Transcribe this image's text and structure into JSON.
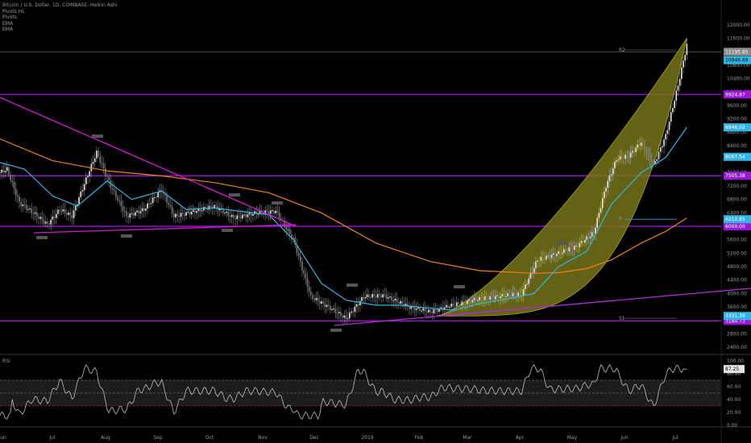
{
  "legend": {
    "symbol": "Bitcoin / U.S. Dollar, 1D, COINBASE, Heikin Ashi",
    "indicators": [
      "Pivots HL",
      "Pivots",
      "EMA",
      "EMA"
    ]
  },
  "rsi_panel": {
    "label": "RSI"
  },
  "colors": {
    "background": "#000000",
    "support_resistance": "#9b16d6",
    "trendline": "#d418d6",
    "ema_fast": "#2fb6e6",
    "ema_slow": "#f0820f",
    "parabola_fill": "#7d7a19",
    "candles": "#cfcfcf"
  },
  "chart_data": [
    {
      "type": "line",
      "title": "Bitcoin / U.S. Dollar, 1D, COINBASE, Heikin Ashi",
      "x_tick_labels": [
        "Jun",
        "Jul",
        "Aug",
        "Sep",
        "Oct",
        "Nov",
        "Dec",
        "2019",
        "Feb",
        "Mar",
        "Apr",
        "May",
        "Jun",
        "Jul"
      ],
      "y_tick_labels": [
        "12000.00",
        "11600.00",
        "11200.00",
        "10800.00",
        "10400.00",
        "10000.00",
        "9600.00",
        "9200.00",
        "8800.00",
        "8400.00",
        "8000.00",
        "7600.00",
        "7200.00",
        "6800.00",
        "6400.00",
        "6000.00",
        "5600.00",
        "5200.00",
        "4800.00",
        "4400.00",
        "4000.00",
        "3600.00",
        "3200.00",
        "2800.00",
        "2400.00"
      ],
      "ylim": [
        2400,
        12000
      ],
      "horizontal_levels": [
        {
          "price": 9924.87,
          "label": "9924.87"
        },
        {
          "price": 7505.38,
          "label": "7505.38"
        },
        {
          "price": 6000.0,
          "label": "6000.00"
        },
        {
          "price": 3184.73,
          "label": "3184.73"
        }
      ],
      "price_badges": [
        {
          "price": 11195.65,
          "label": "11195.65"
        },
        {
          "price": 10946.69,
          "label": "10946.69"
        },
        {
          "price": 8946.02,
          "label": "8946.02"
        },
        {
          "price": 8067.54,
          "label": "8067.54"
        },
        {
          "price": 6210.85,
          "label": "6210.85"
        },
        {
          "price": 3331.39,
          "label": "3331.39"
        }
      ],
      "pivot_labels": [
        "R2",
        "P",
        "S1"
      ],
      "series": [
        {
          "name": "EMA",
          "x": [
            "2018-06-01",
            "2018-06-15",
            "2018-07-01",
            "2018-07-15",
            "2018-08-01",
            "2018-08-15",
            "2018-09-01",
            "2018-09-15",
            "2018-10-01",
            "2018-10-15",
            "2018-11-01",
            "2018-11-15",
            "2018-12-01",
            "2018-12-15",
            "2019-01-01",
            "2019-01-15",
            "2019-02-01",
            "2019-02-15",
            "2019-03-01",
            "2019-03-15",
            "2019-04-01",
            "2019-04-15",
            "2019-05-01",
            "2019-05-15",
            "2019-06-01",
            "2019-06-15",
            "2019-06-27"
          ],
          "values": [
            7900,
            7700,
            6900,
            6600,
            7350,
            6800,
            7050,
            6500,
            6550,
            6450,
            6350,
            5600,
            4300,
            3800,
            3650,
            3650,
            3560,
            3500,
            3700,
            3820,
            4000,
            4800,
            5250,
            6650,
            7600,
            8050,
            8950
          ]
        },
        {
          "name": "EMA",
          "x": [
            "2018-06-01",
            "2018-07-01",
            "2018-08-01",
            "2018-09-01",
            "2018-10-01",
            "2018-11-01",
            "2018-12-01",
            "2019-01-01",
            "2019-02-01",
            "2019-03-01",
            "2019-04-01",
            "2019-04-15",
            "2019-05-01",
            "2019-05-15",
            "2019-06-01",
            "2019-06-15",
            "2019-06-27"
          ],
          "values": [
            8600,
            7950,
            7650,
            7500,
            7300,
            7000,
            6400,
            5500,
            4950,
            4680,
            4600,
            4620,
            4740,
            5000,
            5500,
            5850,
            6250
          ]
        }
      ]
    },
    {
      "type": "line",
      "title": "RSI",
      "y_tick_labels": [
        "100.00",
        "80.00",
        "60.00",
        "40.00",
        "20.00",
        "0.00"
      ],
      "ylim": [
        0,
        100
      ],
      "band": [
        30,
        70
      ],
      "current_value": 87.25,
      "current_label": "87.25"
    }
  ]
}
